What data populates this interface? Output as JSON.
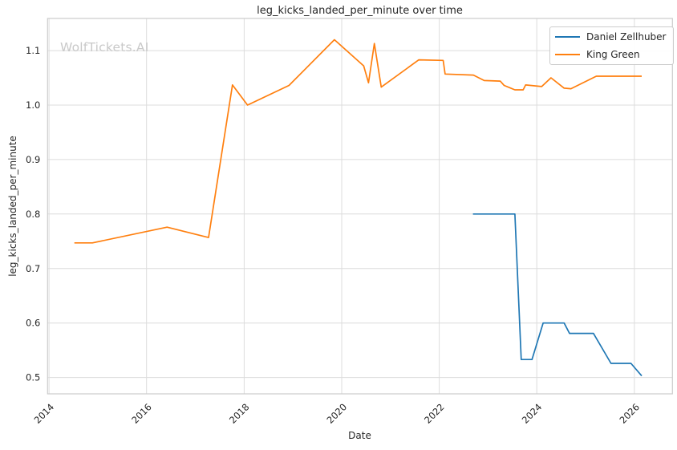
{
  "watermark": "WolfTickets.AI",
  "chart_data": {
    "type": "line",
    "title": "leg_kicks_landed_per_minute over time",
    "xlabel": "Date",
    "ylabel": "leg_kicks_landed_per_minute",
    "grid": true,
    "legend_position": "upper right",
    "xlim": [
      2013.97,
      2026.78
    ],
    "ylim": [
      0.47,
      1.159
    ],
    "xticks": [
      2014,
      2016,
      2018,
      2020,
      2022,
      2024,
      2026
    ],
    "x_tick_labels": [
      "2014",
      "2016",
      "2018",
      "2020",
      "2022",
      "2024",
      "2026"
    ],
    "yticks": [
      0.5,
      0.6,
      0.7,
      0.8,
      0.9,
      1.0,
      1.1
    ],
    "y_tick_labels": [
      "0.5",
      "0.6",
      "0.7",
      "0.8",
      "0.9",
      "1.0",
      "1.1"
    ],
    "colors": {
      "background": "#ffffff",
      "grid": "#dcdcdc",
      "spine": "#cccccc",
      "text": "#262626",
      "watermark": "#c9c9c9"
    },
    "series": [
      {
        "name": "Daniel Zellhuber",
        "color": "#1f77b4",
        "points": [
          [
            2022.69,
            0.8
          ],
          [
            2023.55,
            0.8
          ],
          [
            2023.68,
            0.533
          ],
          [
            2023.9,
            0.533
          ],
          [
            2024.13,
            0.6
          ],
          [
            2024.56,
            0.6
          ],
          [
            2024.67,
            0.581
          ],
          [
            2025.16,
            0.581
          ],
          [
            2025.52,
            0.526
          ],
          [
            2025.93,
            0.526
          ],
          [
            2026.15,
            0.503
          ]
        ]
      },
      {
        "name": "King Green",
        "color": "#ff7f0e",
        "points": [
          [
            2014.52,
            0.747
          ],
          [
            2014.89,
            0.747
          ],
          [
            2016.42,
            0.776
          ],
          [
            2017.27,
            0.757
          ],
          [
            2017.76,
            1.037
          ],
          [
            2018.07,
            1.0
          ],
          [
            2018.92,
            1.036
          ],
          [
            2019.85,
            1.12
          ],
          [
            2020.45,
            1.072
          ],
          [
            2020.55,
            1.041
          ],
          [
            2020.67,
            1.113
          ],
          [
            2020.81,
            1.033
          ],
          [
            2021.58,
            1.083
          ],
          [
            2022.08,
            1.082
          ],
          [
            2022.12,
            1.057
          ],
          [
            2022.7,
            1.055
          ],
          [
            2022.92,
            1.045
          ],
          [
            2023.25,
            1.044
          ],
          [
            2023.33,
            1.036
          ],
          [
            2023.55,
            1.028
          ],
          [
            2023.72,
            1.028
          ],
          [
            2023.77,
            1.037
          ],
          [
            2024.1,
            1.034
          ],
          [
            2024.29,
            1.05
          ],
          [
            2024.56,
            1.031
          ],
          [
            2024.7,
            1.03
          ],
          [
            2025.22,
            1.053
          ],
          [
            2026.15,
            1.053
          ]
        ]
      }
    ]
  }
}
